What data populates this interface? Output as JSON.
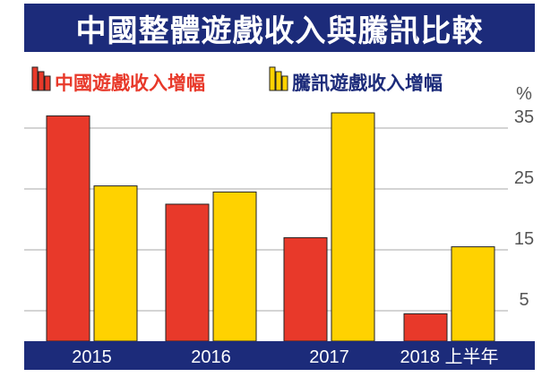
{
  "title": "中國整體遊戲收入與騰訊比較",
  "colors": {
    "title_bg": "#1c2b7a",
    "series_china": "#e8392a",
    "series_tencent": "#ffd200",
    "axis_band": "#1c2b7a",
    "grid": "#aaaaaa"
  },
  "chart_data": {
    "type": "bar",
    "title": "中國整體遊戲收入與騰訊比較",
    "categories": [
      "2015",
      "2016",
      "2017",
      "2018 上半年"
    ],
    "series": [
      {
        "name": "中國遊戲收入增幅",
        "values": [
          37,
          22.5,
          17,
          4.5
        ]
      },
      {
        "name": "騰訊遊戲收入增幅",
        "values": [
          25.5,
          24.5,
          37.5,
          15.5
        ]
      }
    ],
    "yunit": "%",
    "yticks": [
      5,
      15,
      25,
      35
    ],
    "ylim": [
      0,
      40
    ],
    "grid": true,
    "legend_position": "top-left"
  }
}
